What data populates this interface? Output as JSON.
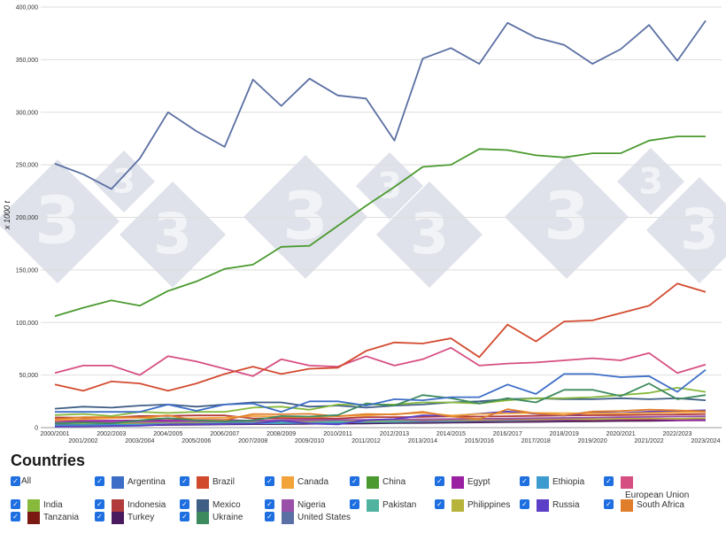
{
  "legend_title": "Countries",
  "legend_items": [
    {
      "name": "All",
      "color": "",
      "is_all": true
    },
    {
      "name": "Argentina",
      "color": "#3d6ec7"
    },
    {
      "name": "Brazil",
      "color": "#d24a2e"
    },
    {
      "name": "Canada",
      "color": "#f2a33a"
    },
    {
      "name": "China",
      "color": "#4a9a2f"
    },
    {
      "name": "Egypt",
      "color": "#9a1fa1"
    },
    {
      "name": "Ethiopia",
      "color": "#3e9bd0"
    },
    {
      "name": "European Union",
      "color": "#d64f82"
    },
    {
      "name": "India",
      "color": "#86b93c"
    },
    {
      "name": "Indonesia",
      "color": "#b23b3b"
    },
    {
      "name": "Mexico",
      "color": "#3f5f85"
    },
    {
      "name": "Nigeria",
      "color": "#9a4fa8"
    },
    {
      "name": "Pakistan",
      "color": "#4fb3a0"
    },
    {
      "name": "Philippines",
      "color": "#b6b43a"
    },
    {
      "name": "Russia",
      "color": "#5b3fc6"
    },
    {
      "name": "South Africa",
      "color": "#e07e2c"
    },
    {
      "name": "Tanzania",
      "color": "#7a1a12"
    },
    {
      "name": "Turkey",
      "color": "#4a1a5e"
    },
    {
      "name": "Ukraine",
      "color": "#3d8a5e"
    },
    {
      "name": "United States",
      "color": "#5a6fa3"
    }
  ],
  "chart_data": {
    "type": "line",
    "ylabel": "x 1000 t",
    "ylim": [
      0,
      400000
    ],
    "yticks": [
      0,
      50000,
      100000,
      150000,
      200000,
      250000,
      300000,
      350000,
      400000
    ],
    "ytick_labels": [
      "0",
      "50,000",
      "100,000",
      "150,000",
      "200,000",
      "250,000",
      "300,000",
      "350,000",
      "400,000"
    ],
    "x": [
      "2000/2001",
      "2001/2002",
      "2002/2003",
      "2003/2004",
      "2004/2005",
      "2005/2006",
      "2006/2007",
      "2007/2008",
      "2008/2009",
      "2009/2010",
      "2010/2011",
      "2011/2012",
      "2012/2013",
      "2013/2014",
      "2014/2015",
      "2015/2016",
      "2016/2017",
      "2017/2018",
      "2018/2019",
      "2019/2020",
      "2020/2021",
      "2021/2022",
      "2022/2023",
      "2023/2024"
    ],
    "grid": true,
    "series": [
      {
        "name": "United States",
        "color": "#5a6fa3",
        "values": [
          251000,
          241000,
          227000,
          256000,
          300000,
          282000,
          267000,
          331000,
          306000,
          332000,
          316000,
          313000,
          273000,
          351000,
          361000,
          346000,
          385000,
          371000,
          364000,
          346000,
          360000,
          383000,
          349000,
          387000
        ]
      },
      {
        "name": "China",
        "color": "#4a9a2f",
        "values": [
          106000,
          114000,
          121000,
          116000,
          130000,
          139000,
          151000,
          155000,
          172000,
          173000,
          192000,
          211000,
          229000,
          248000,
          250000,
          265000,
          264000,
          259000,
          257000,
          261000,
          261000,
          273000,
          277000,
          277000
        ]
      },
      {
        "name": "Brazil",
        "color": "#d24a2e",
        "values": [
          41000,
          35000,
          44000,
          42000,
          35000,
          42000,
          51000,
          58000,
          51000,
          56000,
          57000,
          73000,
          81000,
          80000,
          85000,
          67000,
          98000,
          82000,
          101000,
          102000,
          109000,
          116000,
          137000,
          129000
        ]
      },
      {
        "name": "European Union",
        "color": "#d64f82",
        "values": [
          52000,
          59000,
          59000,
          50000,
          68000,
          63000,
          56000,
          49000,
          65000,
          59000,
          58000,
          68000,
          59000,
          65000,
          76000,
          59000,
          61000,
          62000,
          64000,
          66000,
          64000,
          71000,
          52000,
          60000
        ]
      },
      {
        "name": "Argentina",
        "color": "#3d6ec7",
        "values": [
          15000,
          15000,
          15000,
          15000,
          22000,
          16000,
          22000,
          23000,
          15000,
          25000,
          25000,
          21000,
          27000,
          26000,
          29000,
          29000,
          41000,
          32000,
          51000,
          51000,
          48000,
          49000,
          34000,
          55000
        ]
      },
      {
        "name": "Ukraine",
        "color": "#3d8a5e",
        "values": [
          4000,
          5000,
          4000,
          7000,
          9000,
          7000,
          6000,
          7000,
          11000,
          10500,
          12000,
          23000,
          21000,
          31000,
          28000,
          23000,
          28000,
          24000,
          36000,
          36000,
          30000,
          42000,
          27000,
          31000
        ]
      },
      {
        "name": "India",
        "color": "#86b93c",
        "values": [
          12000,
          13000,
          11000,
          15000,
          14000,
          15000,
          15000,
          19000,
          20000,
          17000,
          22000,
          22000,
          22000,
          24000,
          24000,
          23000,
          26000,
          28000,
          28000,
          29000,
          31000,
          33000,
          38000,
          34000
        ]
      },
      {
        "name": "Mexico",
        "color": "#3f5f85",
        "values": [
          18000,
          20000,
          19000,
          21000,
          22000,
          20000,
          22000,
          24000,
          24000,
          20000,
          21000,
          19000,
          21000,
          22000,
          24000,
          25000,
          27000,
          28000,
          27000,
          27000,
          28000,
          27000,
          28000,
          26000
        ]
      },
      {
        "name": "South Africa",
        "color": "#e07e2c",
        "values": [
          8000,
          10000,
          10000,
          9700,
          11700,
          7000,
          7200,
          13000,
          12700,
          13100,
          10900,
          13000,
          12500,
          15000,
          10600,
          8200,
          17500,
          13500,
          11800,
          15300,
          15800,
          17100,
          16400,
          15400
        ]
      },
      {
        "name": "Canada",
        "color": "#f2a33a",
        "values": [
          7000,
          8000,
          9000,
          9500,
          8500,
          9000,
          9500,
          11000,
          10500,
          10000,
          11000,
          11500,
          13000,
          14000,
          11500,
          13000,
          13500,
          14000,
          13800,
          13500,
          13500,
          14000,
          14500,
          15000
        ]
      },
      {
        "name": "Russia",
        "color": "#5b3fc6",
        "values": [
          1000,
          1200,
          1500,
          1800,
          3000,
          3100,
          3500,
          3800,
          6600,
          4000,
          3100,
          7000,
          8200,
          11600,
          11300,
          13200,
          15300,
          13200,
          11400,
          14300,
          13900,
          15200,
          15800,
          16500
        ]
      },
      {
        "name": "Indonesia",
        "color": "#b23b3b",
        "values": [
          9700,
          9500,
          9600,
          11000,
          11200,
          11600,
          11600,
          8800,
          9100,
          9000,
          8800,
          9900,
          10000,
          10200,
          10800,
          10500,
          10900,
          11200,
          11500,
          11800,
          12000,
          12200,
          12500,
          13000
        ]
      },
      {
        "name": "Nigeria",
        "color": "#9a4fa8",
        "values": [
          5000,
          5100,
          5300,
          5500,
          5700,
          5900,
          6100,
          6500,
          6800,
          7000,
          7300,
          7500,
          7800,
          8000,
          8200,
          8500,
          8700,
          9000,
          9300,
          9600,
          9900,
          10200,
          10500,
          10800
        ]
      },
      {
        "name": "Philippines",
        "color": "#b6b43a",
        "values": [
          4500,
          4500,
          4300,
          4600,
          5400,
          5300,
          6200,
          6200,
          7000,
          6200,
          7300,
          6500,
          7400,
          7500,
          7600,
          7500,
          8000,
          7900,
          8300,
          8200,
          8600,
          8800,
          8400,
          8900
        ]
      },
      {
        "name": "Egypt",
        "color": "#9a1fa1",
        "values": [
          6500,
          6500,
          6700,
          6800,
          7100,
          7300,
          7400,
          6500,
          7300,
          7500,
          7600,
          6900,
          7600,
          6700,
          7300,
          7000,
          7400,
          7200,
          7500,
          7700,
          7800,
          7900,
          7000,
          7200
        ]
      },
      {
        "name": "Pakistan",
        "color": "#4fb3a0",
        "values": [
          4100,
          4000,
          4100,
          4400,
          4700,
          4900,
          5100,
          5400,
          5300,
          5500,
          5700,
          5800,
          6100,
          6300,
          6500,
          6700,
          6900,
          7200,
          7400,
          7700,
          7900,
          8200,
          8500,
          8700
        ]
      },
      {
        "name": "Ethiopia",
        "color": "#3e9bd0",
        "values": [
          2300,
          2400,
          2600,
          2800,
          3000,
          3300,
          3600,
          3900,
          4200,
          4500,
          4800,
          5100,
          5400,
          5700,
          6000,
          6300,
          6600,
          6900,
          7200,
          7500,
          7800,
          8100,
          8400,
          8700
        ]
      },
      {
        "name": "Tanzania",
        "color": "#7a1a12",
        "values": [
          2500,
          2600,
          2800,
          3000,
          3300,
          3500,
          3700,
          4000,
          4200,
          4400,
          4700,
          5000,
          5200,
          5500,
          5800,
          6000,
          6200,
          6500,
          6800,
          7000,
          7200,
          7400,
          7600,
          7800
        ]
      },
      {
        "name": "Turkey",
        "color": "#4a1a5e",
        "values": [
          2000,
          2000,
          2100,
          2200,
          2500,
          2800,
          3000,
          3300,
          3400,
          3600,
          3700,
          4000,
          4300,
          4500,
          4700,
          5000,
          5300,
          5500,
          5800,
          6000,
          6300,
          6500,
          6800,
          7000
        ]
      }
    ]
  }
}
